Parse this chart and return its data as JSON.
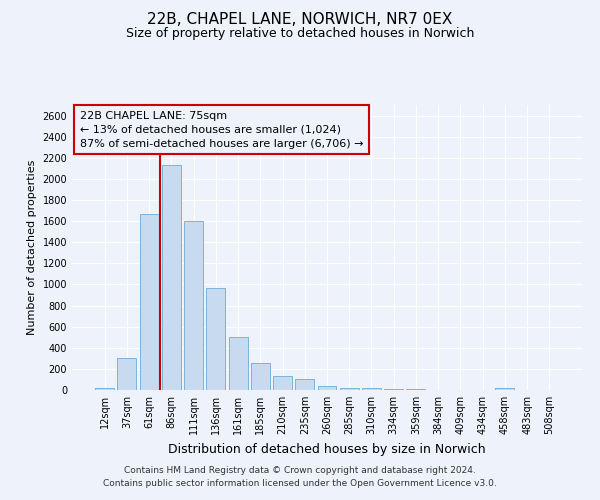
{
  "title": "22B, CHAPEL LANE, NORWICH, NR7 0EX",
  "subtitle": "Size of property relative to detached houses in Norwich",
  "xlabel": "Distribution of detached houses by size in Norwich",
  "ylabel": "Number of detached properties",
  "bar_labels": [
    "12sqm",
    "37sqm",
    "61sqm",
    "86sqm",
    "111sqm",
    "136sqm",
    "161sqm",
    "185sqm",
    "210sqm",
    "235sqm",
    "260sqm",
    "285sqm",
    "310sqm",
    "334sqm",
    "359sqm",
    "384sqm",
    "409sqm",
    "434sqm",
    "458sqm",
    "483sqm",
    "508sqm"
  ],
  "bar_values": [
    20,
    300,
    1670,
    2130,
    1600,
    970,
    505,
    255,
    130,
    100,
    35,
    20,
    15,
    5,
    5,
    2,
    2,
    2,
    15,
    2,
    2
  ],
  "bar_color": "#c8daf0",
  "bar_edge_color": "#7ab4dc",
  "vline_color": "#cc0000",
  "vline_pos": 2.5,
  "ylim": [
    0,
    2700
  ],
  "yticks": [
    0,
    200,
    400,
    600,
    800,
    1000,
    1200,
    1400,
    1600,
    1800,
    2000,
    2200,
    2400,
    2600
  ],
  "annotation_title": "22B CHAPEL LANE: 75sqm",
  "annotation_line1": "← 13% of detached houses are smaller (1,024)",
  "annotation_line2": "87% of semi-detached houses are larger (6,706) →",
  "annotation_box_color": "#cc0000",
  "footer_line1": "Contains HM Land Registry data © Crown copyright and database right 2024.",
  "footer_line2": "Contains public sector information licensed under the Open Government Licence v3.0.",
  "background_color": "#eef2fa",
  "grid_color": "#ffffff",
  "title_fontsize": 11,
  "subtitle_fontsize": 9,
  "ylabel_fontsize": 8,
  "xlabel_fontsize": 9,
  "tick_fontsize": 7,
  "annotation_fontsize": 8,
  "footer_fontsize": 6.5
}
